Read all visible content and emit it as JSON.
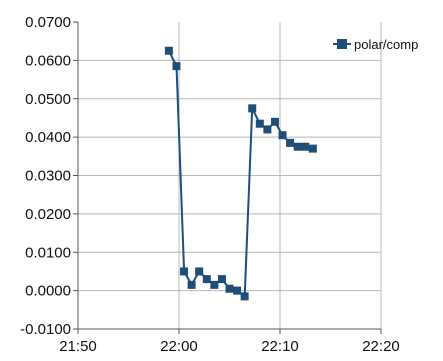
{
  "chart_data": {
    "type": "line",
    "title": "",
    "xlabel": "",
    "ylabel": "",
    "x_unit": "time",
    "xlim": [
      "21:50",
      "22:20"
    ],
    "ylim": [
      -0.01,
      0.07
    ],
    "x_ticks": [
      "21:50",
      "22:00",
      "22:10",
      "22:20"
    ],
    "y_ticks": [
      "0.0700",
      "0.0600",
      "0.0500",
      "0.0400",
      "0.0300",
      "0.0200",
      "0.0100",
      "0.0000",
      "-0.0100"
    ],
    "grid": true,
    "legend_position": "top-right",
    "series": [
      {
        "name": "polar/comp",
        "color": "#1f4e79",
        "marker": "square",
        "x": [
          "21:59",
          "21:59:45",
          "22:00:30",
          "22:01:15",
          "22:02",
          "22:02:45",
          "22:03:30",
          "22:04:15",
          "22:05",
          "22:05:45",
          "22:06:30",
          "22:07:15",
          "22:08",
          "22:08:45",
          "22:09:30",
          "22:10:15",
          "22:11",
          "22:11:45",
          "22:12:30",
          "22:13:15"
        ],
        "values": [
          0.0625,
          0.0585,
          0.005,
          0.0015,
          0.005,
          0.003,
          0.0015,
          0.003,
          0.0005,
          0.0,
          -0.0015,
          0.0475,
          0.0435,
          0.042,
          0.044,
          0.0405,
          0.0385,
          0.0375,
          0.0375,
          0.037
        ]
      }
    ]
  }
}
